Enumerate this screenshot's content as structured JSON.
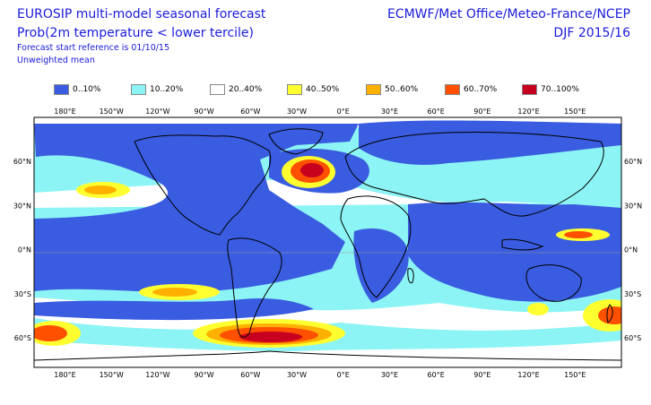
{
  "title": {
    "line1": "EUROSIP multi-model seasonal forecast",
    "line2": "Prob(2m temperature < lower tercile)",
    "line3": "Forecast start reference is 01/10/15",
    "line4": "Unweighted mean"
  },
  "source": {
    "centres": "ECMWF/Met Office/Meteo-France/NCEP",
    "season": "DJF 2015/16"
  },
  "legend": [
    {
      "label": "0..10%",
      "color": "#3a5ce0"
    },
    {
      "label": "10..20%",
      "color": "#8cf4f4"
    },
    {
      "label": "20..40%",
      "color": "#ffffff"
    },
    {
      "label": "40..50%",
      "color": "#ffff30"
    },
    {
      "label": "50..60%",
      "color": "#ffb000"
    },
    {
      "label": "60..70%",
      "color": "#ff5000"
    },
    {
      "label": "70..100%",
      "color": "#c80020"
    }
  ],
  "map": {
    "lon_ticks": [
      "180°E",
      "150°W",
      "120°W",
      "90°W",
      "60°W",
      "30°W",
      "0°E",
      "30°E",
      "60°E",
      "90°E",
      "120°E",
      "150°E"
    ],
    "lat_ticks": [
      "60°N",
      "30°N",
      "0°N",
      "30°S",
      "60°S"
    ],
    "lon_range": [
      -200,
      180
    ],
    "lat_range": [
      -80,
      90
    ]
  }
}
